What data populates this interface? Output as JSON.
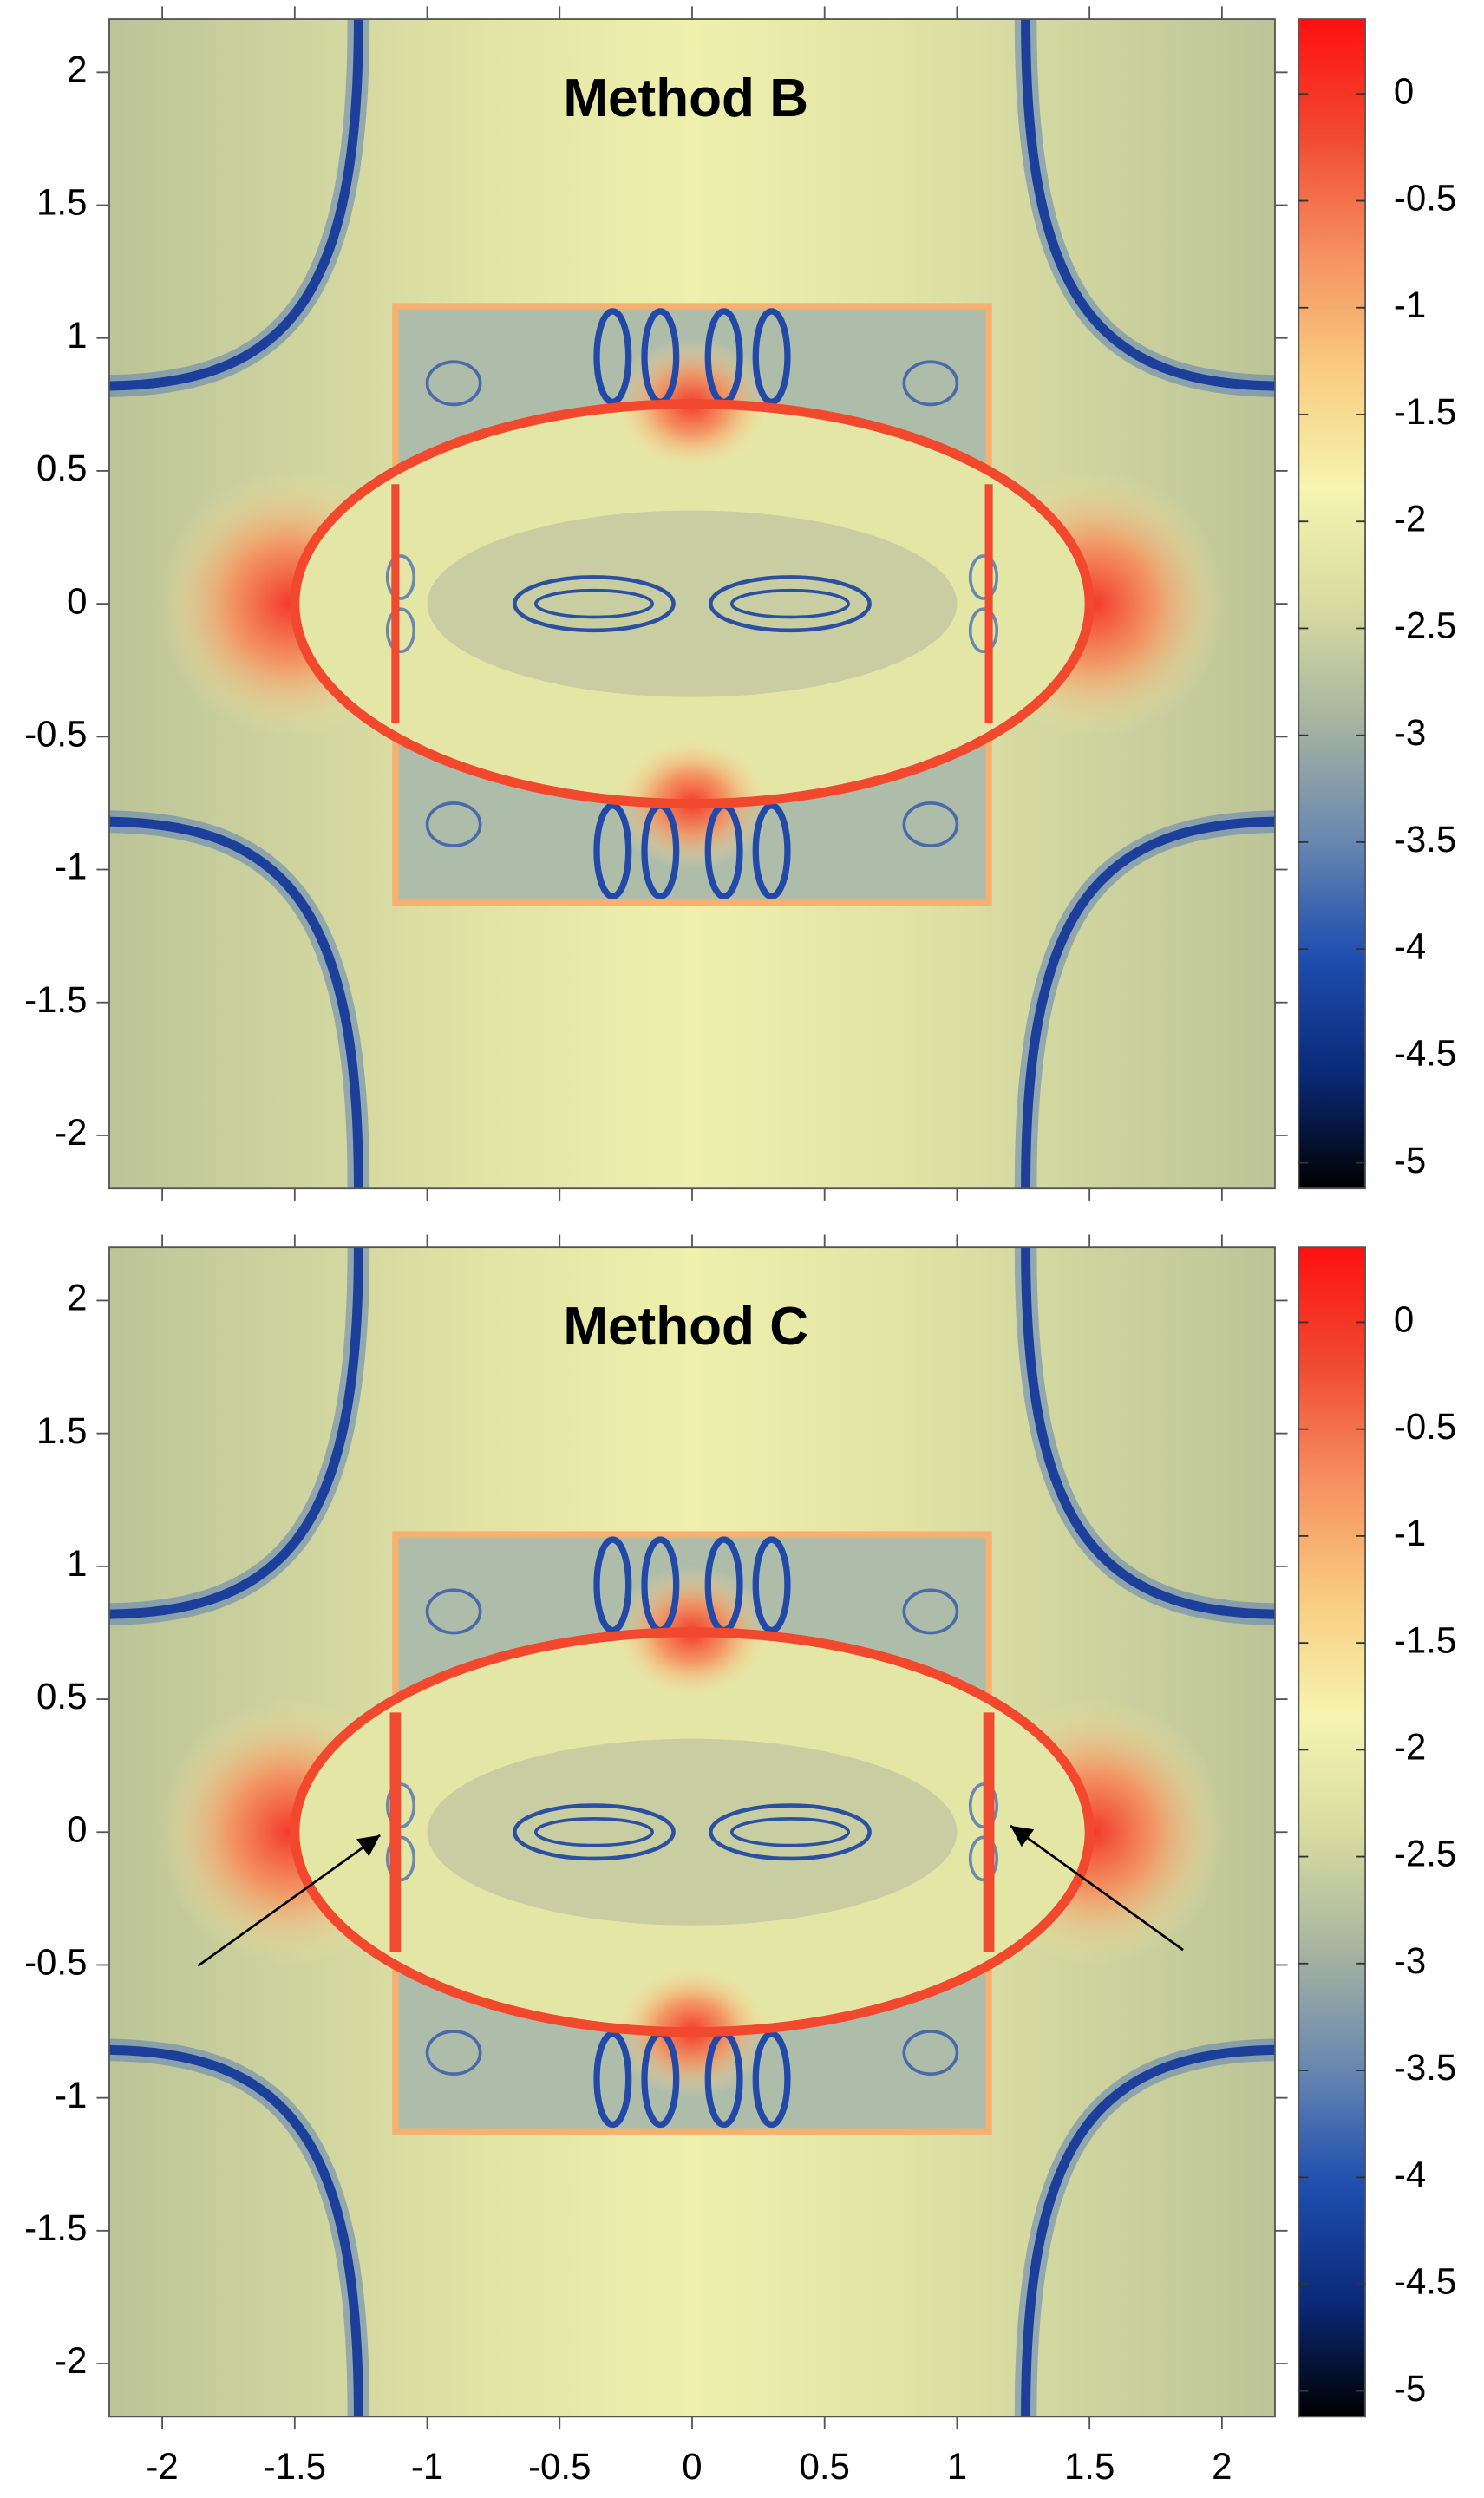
{
  "chart_data": [
    {
      "type": "heatmap",
      "title": "Method B",
      "xlim": [
        -2.2,
        2.2
      ],
      "ylim": [
        -2.2,
        2.2
      ],
      "xticks": [
        -2,
        -1.5,
        -1,
        -0.5,
        0,
        0.5,
        1,
        1.5,
        2
      ],
      "yticks": [
        -2,
        -1.5,
        -1,
        -0.5,
        0,
        0.5,
        1,
        1.5,
        2
      ],
      "colorbar": {
        "zlim": [
          -5.12,
          0.35
        ],
        "ticks": [
          -5,
          -4.5,
          -4,
          -3.5,
          -3,
          -2.5,
          -2,
          -1.5,
          -1,
          -0.5,
          0
        ],
        "colormap": [
          "#000000",
          "#0a2a7a",
          "#1f4fb0",
          "#6a88b0",
          "#a8b4a0",
          "#d8dca0",
          "#f6f4b0",
          "#f8cc80",
          "#f69060",
          "#f04a30",
          "#ff1010"
        ]
      }
    },
    {
      "type": "heatmap",
      "title": "Method C",
      "xlim": [
        -2.2,
        2.2
      ],
      "ylim": [
        -2.2,
        2.2
      ],
      "xticks": [
        -2,
        -1.5,
        -1,
        -0.5,
        0,
        0.5,
        1,
        1.5,
        2
      ],
      "yticks": [
        -2,
        -1.5,
        -1,
        -0.5,
        0,
        0.5,
        1,
        1.5,
        2
      ],
      "colorbar": {
        "zlim": [
          -5.12,
          0.35
        ],
        "ticks": [
          -5,
          -4.5,
          -4,
          -3.5,
          -3,
          -2.5,
          -2,
          -1.5,
          -1,
          -0.5,
          0
        ],
        "colormap": [
          "#000000",
          "#0a2a7a",
          "#1f4fb0",
          "#6a88b0",
          "#a8b4a0",
          "#d8dca0",
          "#f6f4b0",
          "#f8cc80",
          "#f69060",
          "#f04a30",
          "#ff1010"
        ]
      }
    }
  ]
}
